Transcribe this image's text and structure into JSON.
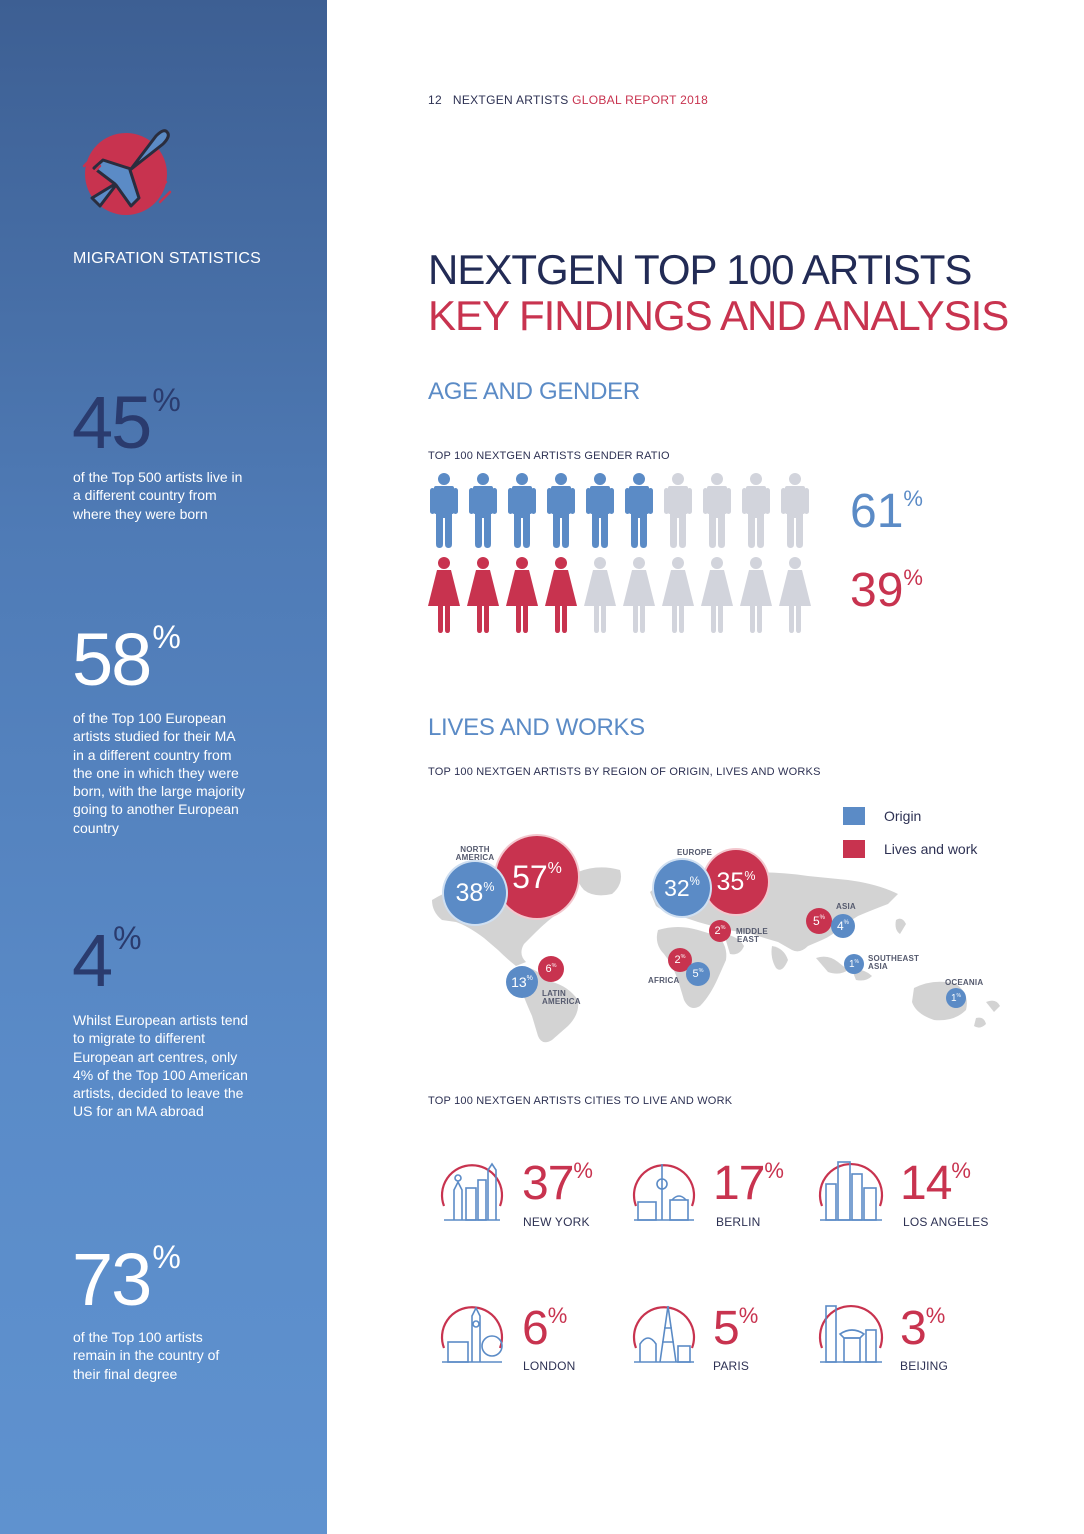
{
  "page": {
    "number": "12",
    "brand": "NEXTGEN ARTISTS",
    "report": "GLOBAL REPORT 2018"
  },
  "sidebar": {
    "title": "MIGRATION STATISTICS",
    "stats": [
      {
        "value": "45",
        "unit": "%",
        "desc": "of the Top 500 artists live in a different country from where they were born"
      },
      {
        "value": "58",
        "unit": "%",
        "desc": "of the Top 100 European artists studied for their MA in a different country from the one in which they were born, with the large majority going to another European country"
      },
      {
        "value": "4",
        "unit": "%",
        "desc": "Whilst European artists tend to migrate to different European art centres, only 4% of the Top 100 American artists, decided to leave the US for an MA abroad"
      },
      {
        "value": "73",
        "unit": "%",
        "desc": "of the Top 100 artists remain in the country of their final degree"
      }
    ]
  },
  "main": {
    "title_line1": "NEXTGEN TOP 100 ARTISTS",
    "title_line2": "KEY FINDINGS AND ANALYSIS",
    "age_gender": {
      "heading": "AGE AND GENDER",
      "subheading": "TOP 100 NEXTGEN ARTISTS GENDER RATIO",
      "male_value": "61",
      "female_value": "39",
      "unit": "%",
      "male_filled": 6,
      "female_filled": 4,
      "total_icons": 10
    },
    "lives_works": {
      "heading": "LIVES AND WORKS",
      "subheading": "TOP 100 NEXTGEN ARTISTS BY REGION OF ORIGIN, LIVES AND WORKS",
      "legend": [
        {
          "label": "Origin",
          "color": "#5b8bc6"
        },
        {
          "label": "Lives and work",
          "color": "#c8334f"
        }
      ],
      "regions": [
        {
          "name_line1": "NORTH",
          "name_line2": "AMERICA",
          "origin": "38",
          "lives": "57"
        },
        {
          "name_line1": "EUROPE",
          "name_line2": "",
          "origin": "32",
          "lives": "35"
        },
        {
          "name_line1": "ASIA",
          "name_line2": "",
          "origin": "4",
          "lives": "5"
        },
        {
          "name_line1": "MIDDLE",
          "name_line2": "EAST",
          "origin": "",
          "lives": "2"
        },
        {
          "name_line1": "LATIN",
          "name_line2": "AMERICA",
          "origin": "13",
          "lives": "6"
        },
        {
          "name_line1": "AFRICA",
          "name_line2": "",
          "origin": "5",
          "lives": "2"
        },
        {
          "name_line1": "SOUTHEAST",
          "name_line2": "ASIA",
          "origin": "1",
          "lives": ""
        },
        {
          "name_line1": "OCEANIA",
          "name_line2": "",
          "origin": "1",
          "lives": ""
        }
      ]
    },
    "cities": {
      "subheading": "TOP 100 NEXTGEN ARTISTS CITIES TO LIVE AND WORK",
      "items": [
        {
          "name": "NEW YORK",
          "value": "37",
          "unit": "%",
          "icon": "new-york-skyline-icon"
        },
        {
          "name": "BERLIN",
          "value": "17",
          "unit": "%",
          "icon": "berlin-skyline-icon"
        },
        {
          "name": "LOS ANGELES",
          "value": "14",
          "unit": "%",
          "icon": "los-angeles-skyline-icon"
        },
        {
          "name": "LONDON",
          "value": "6",
          "unit": "%",
          "icon": "london-skyline-icon"
        },
        {
          "name": "PARIS",
          "value": "5",
          "unit": "%",
          "icon": "paris-skyline-icon"
        },
        {
          "name": "BEIJING",
          "value": "3",
          "unit": "%",
          "icon": "beijing-skyline-icon"
        }
      ]
    }
  },
  "colors": {
    "blue": "#5b8bc6",
    "red": "#c8334f",
    "grey": "#d2d4dc",
    "navy": "#222b55"
  }
}
